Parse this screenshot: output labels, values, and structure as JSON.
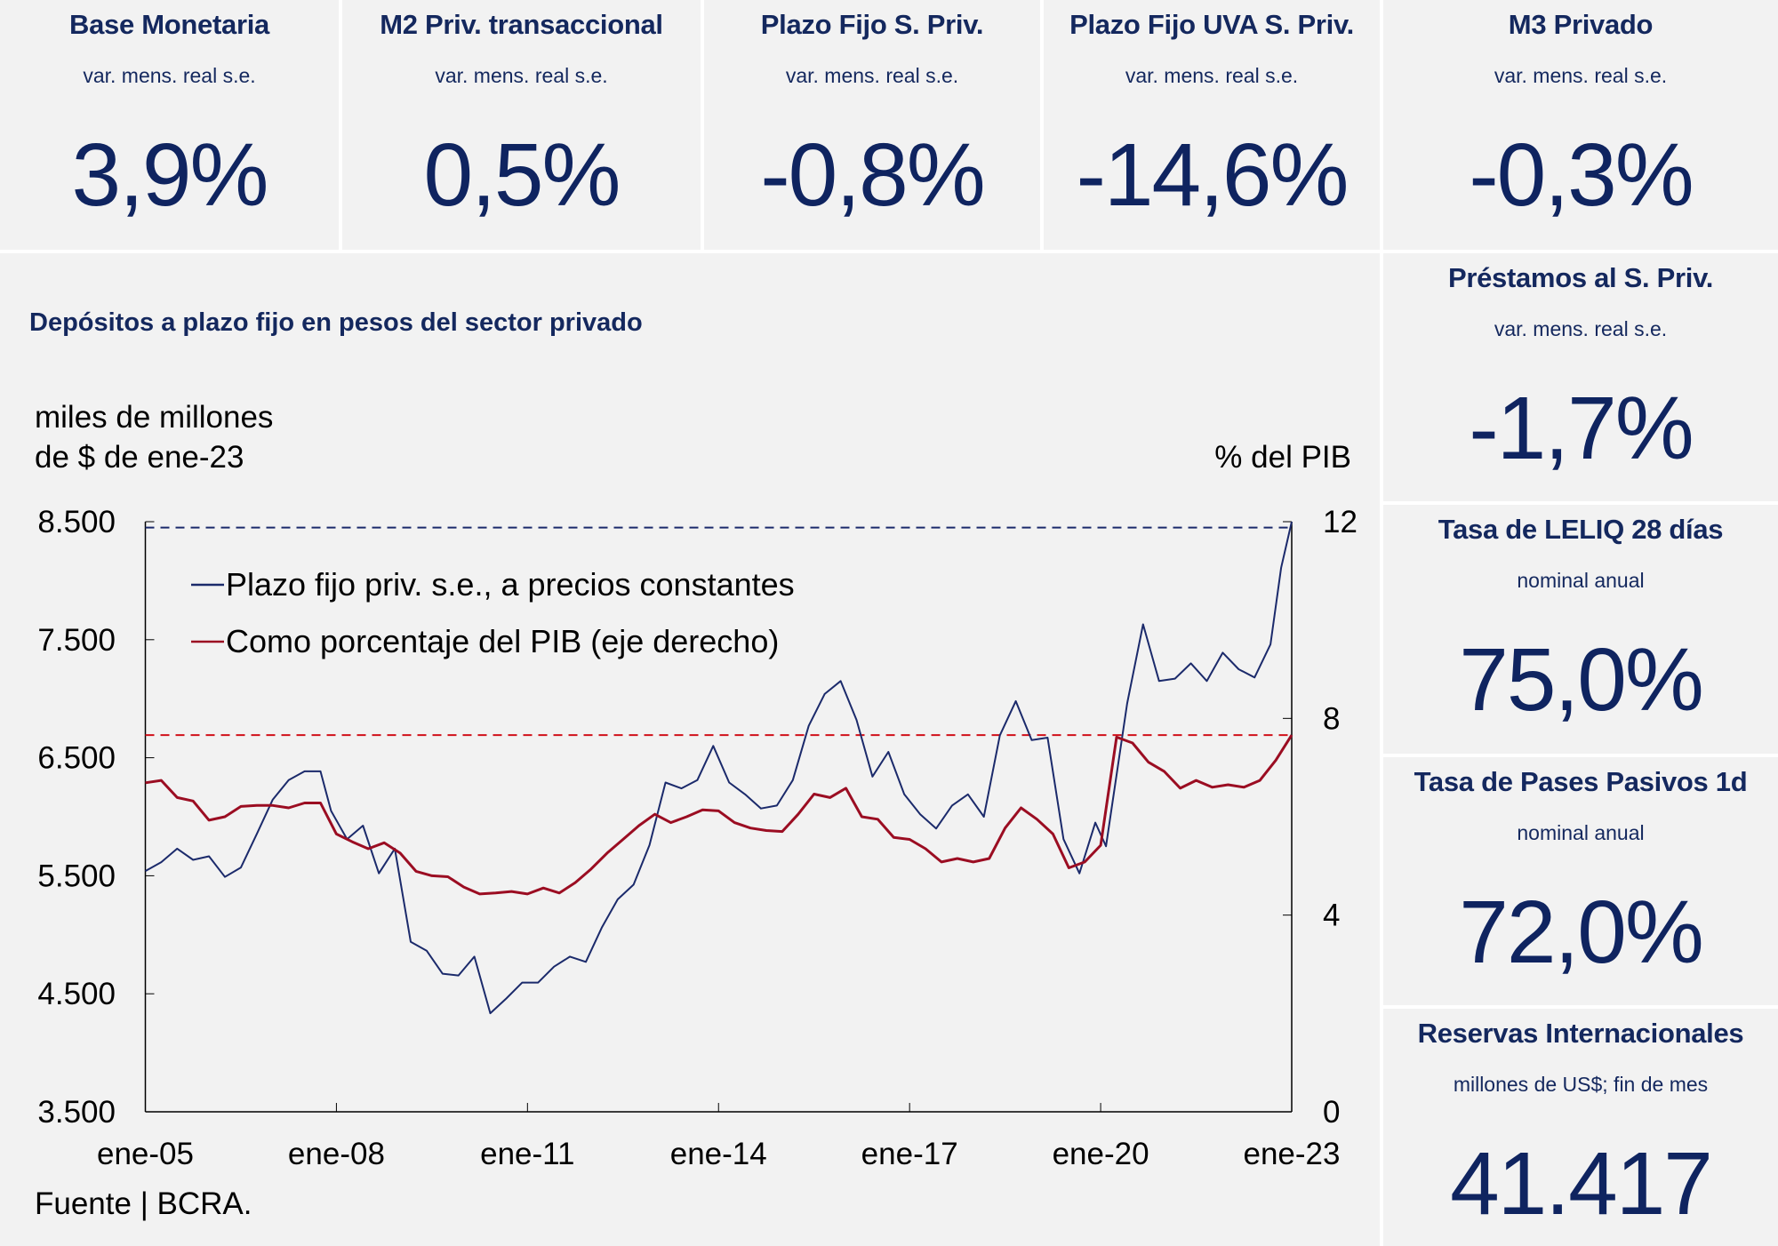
{
  "kpis_top": [
    {
      "title": "Base Monetaria",
      "subtitle": "var. mens. real s.e.",
      "value": "3,9%"
    },
    {
      "title": "M2 Priv. transaccional",
      "subtitle": "var. mens. real s.e.",
      "value": "0,5%"
    },
    {
      "title": "Plazo Fijo S. Priv.",
      "subtitle": "var. mens. real s.e.",
      "value": "-0,8%"
    },
    {
      "title": "Plazo Fijo UVA S. Priv.",
      "subtitle": "var. mens. real s.e.",
      "value": "-14,6%"
    },
    {
      "title": "M3 Privado",
      "subtitle": "var. mens. real s.e.",
      "value": "-0,3%"
    }
  ],
  "kpis_side": [
    {
      "title": "Préstamos al S. Priv.",
      "subtitle": "var. mens. real s.e.",
      "value": "-1,7%"
    },
    {
      "title": "Tasa de LELIQ 28 días",
      "subtitle": "nominal anual",
      "value": "75,0%"
    },
    {
      "title": "Tasa de Pases Pasivos 1d",
      "subtitle": "nominal anual",
      "value": "72,0%"
    },
    {
      "title": "Reservas Internacionales",
      "subtitle": "millones de US$; fin de mes",
      "value": "41.417"
    }
  ],
  "chart_data": {
    "type": "line",
    "title": "Depósitos a plazo fijo en pesos del sector privado",
    "ylabel_left": [
      "miles de millones",
      "de $ de ene-23"
    ],
    "ylabel_right": "% del PIB",
    "source": "Fuente | BCRA.",
    "x_ticks": [
      "ene-05",
      "ene-08",
      "ene-11",
      "ene-14",
      "ene-17",
      "ene-20",
      "ene-23"
    ],
    "y_left": {
      "range": [
        3500,
        8500
      ],
      "ticks": [
        "3.500",
        "4.500",
        "5.500",
        "6.500",
        "7.500",
        "8.500"
      ]
    },
    "y_right": {
      "range": [
        0,
        12
      ],
      "ticks": [
        "0",
        "4",
        "8",
        "12"
      ]
    },
    "legend_position": "top-left",
    "reference_lines": [
      {
        "axis": "left",
        "value": 8450,
        "color": "#1b2a6b"
      },
      {
        "axis": "right",
        "value": 7.66,
        "color": "#d0101a"
      }
    ],
    "series": [
      {
        "name": "Plazo fijo priv. s.e., a precios constantes",
        "axis": "left",
        "color": "#1b2a6b",
        "x": [
          "2005-01",
          "2005-04",
          "2005-07",
          "2005-10",
          "2006-01",
          "2006-04",
          "2006-07",
          "2006-10",
          "2007-01",
          "2007-04",
          "2007-07",
          "2007-10",
          "2007-12",
          "2008-03",
          "2008-06",
          "2008-09",
          "2008-12",
          "2009-03",
          "2009-06",
          "2009-09",
          "2009-12",
          "2010-03",
          "2010-06",
          "2010-09",
          "2010-12",
          "2011-03",
          "2011-06",
          "2011-09",
          "2011-12",
          "2012-03",
          "2012-06",
          "2012-09",
          "2012-12",
          "2013-03",
          "2013-06",
          "2013-09",
          "2013-12",
          "2014-03",
          "2014-06",
          "2014-09",
          "2014-12",
          "2015-03",
          "2015-06",
          "2015-09",
          "2015-12",
          "2016-03",
          "2016-06",
          "2016-09",
          "2016-12",
          "2017-03",
          "2017-06",
          "2017-09",
          "2017-12",
          "2018-03",
          "2018-06",
          "2018-09",
          "2018-12",
          "2019-03",
          "2019-06",
          "2019-09",
          "2019-12",
          "2020-02",
          "2020-06",
          "2020-09",
          "2020-12",
          "2021-03",
          "2021-06",
          "2021-09",
          "2021-12",
          "2022-03",
          "2022-06",
          "2022-09",
          "2022-11",
          "2023-01"
        ],
        "y": [
          5540,
          5615,
          5730,
          5635,
          5665,
          5490,
          5570,
          5855,
          6145,
          6310,
          6385,
          6385,
          6050,
          5810,
          5925,
          5520,
          5730,
          4940,
          4865,
          4670,
          4655,
          4815,
          4335,
          4460,
          4595,
          4595,
          4730,
          4815,
          4770,
          5060,
          5300,
          5425,
          5760,
          6290,
          6240,
          6310,
          6600,
          6290,
          6190,
          6070,
          6095,
          6310,
          6770,
          7040,
          7150,
          6820,
          6340,
          6550,
          6190,
          6020,
          5900,
          6095,
          6190,
          6000,
          6690,
          6980,
          6650,
          6670,
          5810,
          5520,
          5950,
          5750,
          6960,
          7630,
          7150,
          7170,
          7300,
          7150,
          7390,
          7250,
          7180,
          7460,
          8110,
          8500
        ]
      },
      {
        "name": "Como porcentaje del PIB (eje derecho)",
        "axis": "right",
        "color": "#9b0d22",
        "x": [
          "2005-01",
          "2005-04",
          "2005-07",
          "2005-10",
          "2006-01",
          "2006-04",
          "2006-07",
          "2006-10",
          "2007-01",
          "2007-04",
          "2007-07",
          "2007-10",
          "2008-01",
          "2008-04",
          "2008-07",
          "2008-10",
          "2009-01",
          "2009-04",
          "2009-07",
          "2009-10",
          "2010-01",
          "2010-04",
          "2010-07",
          "2010-10",
          "2011-01",
          "2011-04",
          "2011-07",
          "2011-10",
          "2012-01",
          "2012-04",
          "2012-07",
          "2012-10",
          "2013-01",
          "2013-04",
          "2013-07",
          "2013-10",
          "2014-01",
          "2014-04",
          "2014-07",
          "2014-10",
          "2015-01",
          "2015-04",
          "2015-07",
          "2015-10",
          "2016-01",
          "2016-04",
          "2016-07",
          "2016-10",
          "2017-01",
          "2017-04",
          "2017-07",
          "2017-10",
          "2018-01",
          "2018-04",
          "2018-07",
          "2018-10",
          "2019-01",
          "2019-04",
          "2019-07",
          "2019-10",
          "2020-01",
          "2020-04",
          "2020-07",
          "2020-10",
          "2021-01",
          "2021-04",
          "2021-07",
          "2021-10",
          "2022-01",
          "2022-04",
          "2022-07",
          "2022-10",
          "2023-01"
        ],
        "y": [
          6.69,
          6.74,
          6.39,
          6.32,
          5.93,
          6.0,
          6.21,
          6.23,
          6.23,
          6.18,
          6.28,
          6.28,
          5.65,
          5.49,
          5.35,
          5.47,
          5.26,
          4.89,
          4.8,
          4.78,
          4.57,
          4.43,
          4.45,
          4.48,
          4.43,
          4.55,
          4.45,
          4.66,
          4.94,
          5.26,
          5.54,
          5.82,
          6.05,
          5.88,
          6.0,
          6.14,
          6.12,
          5.88,
          5.77,
          5.72,
          5.7,
          6.05,
          6.46,
          6.39,
          6.58,
          6.0,
          5.95,
          5.58,
          5.54,
          5.35,
          5.08,
          5.15,
          5.08,
          5.15,
          5.77,
          6.18,
          5.95,
          5.65,
          4.96,
          5.08,
          5.42,
          7.62,
          7.5,
          7.11,
          6.92,
          6.58,
          6.74,
          6.6,
          6.65,
          6.6,
          6.74,
          7.15,
          7.66
        ]
      }
    ]
  }
}
